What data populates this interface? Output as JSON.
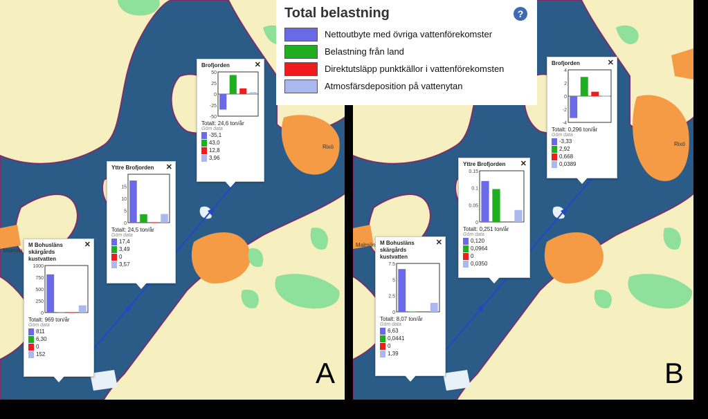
{
  "legend": {
    "title": "Total belastning",
    "help_icon": "question-icon",
    "items": [
      {
        "label": "Nettoutbyte med övriga vattenförekomster",
        "color": "#6a6ae8"
      },
      {
        "label": "Belastning från land",
        "color": "#1fae1f"
      },
      {
        "label": "Direktutsläpp punktkällor i vattenförekomsten",
        "color": "#ee1c1c"
      },
      {
        "label": "Atmosfärsdeposition på vattenytan",
        "color": "#aab8ee"
      }
    ]
  },
  "place_names": {
    "malmon": "Malmön",
    "rixo": "Rixö"
  },
  "hide_label": "Göm data",
  "panels": [
    {
      "letter": "A",
      "popups": [
        {
          "title": "Brofjorden",
          "total": "Totalt: 24,6 ton/år",
          "values": [
            "-35,1",
            "43,0",
            "12,8",
            "3,96"
          ],
          "chart_data": {
            "type": "bar",
            "categories": [
              "Nettoutbyte",
              "Land",
              "Punktkällor",
              "Atmosfär"
            ],
            "values": [
              -35.1,
              43.0,
              12.8,
              3.96
            ],
            "ylim": [
              -50,
              50
            ],
            "yticks": [
              "50",
              "25",
              "0",
              "-25",
              "-50"
            ],
            "ytick_values": [
              50,
              25,
              0,
              -25,
              -50
            ]
          }
        },
        {
          "title": "Yttre Brofjorden",
          "total": "Totalt: 24,5 ton/år",
          "values": [
            "17,4",
            "3,49",
            "0",
            "3,57"
          ],
          "chart_data": {
            "type": "bar",
            "categories": [
              "Nettoutbyte",
              "Land",
              "Punktkällor",
              "Atmosfär"
            ],
            "values": [
              17.4,
              3.49,
              0,
              3.57
            ],
            "ylim": [
              0,
              20
            ],
            "yticks": [
              "15",
              "10",
              "5",
              "0"
            ],
            "ytick_values": [
              15,
              10,
              5,
              0
            ]
          }
        },
        {
          "title": "M Bohusläns skärgårds kustvatten",
          "total": "Totalt: 969 ton/år",
          "values": [
            "811",
            "6,30",
            "0",
            "152"
          ],
          "chart_data": {
            "type": "bar",
            "categories": [
              "Nettoutbyte",
              "Land",
              "Punktkällor",
              "Atmosfär"
            ],
            "values": [
              811,
              6.3,
              0,
              152
            ],
            "ylim": [
              0,
              1000
            ],
            "yticks": [
              "1000",
              "750",
              "500",
              "250",
              "0"
            ],
            "ytick_values": [
              1000,
              750,
              500,
              250,
              0
            ]
          }
        }
      ]
    },
    {
      "letter": "B",
      "popups": [
        {
          "title": "Brofjorden",
          "total": "Totalt: 0,296 ton/år",
          "values": [
            "-3,33",
            "2,92",
            "0,668",
            "0,0389"
          ],
          "chart_data": {
            "type": "bar",
            "categories": [
              "Nettoutbyte",
              "Land",
              "Punktkällor",
              "Atmosfär"
            ],
            "values": [
              -3.33,
              2.92,
              0.668,
              0.0389
            ],
            "ylim": [
              -4,
              4
            ],
            "yticks": [
              "4",
              "2",
              "0",
              "-2",
              "-4"
            ],
            "ytick_values": [
              4,
              2,
              0,
              -2,
              -4
            ]
          }
        },
        {
          "title": "Yttre Brofjorden",
          "total": "Totalt: 0,251 ton/år",
          "values": [
            "0,120",
            "0,0964",
            "0",
            "0,0350"
          ],
          "chart_data": {
            "type": "bar",
            "categories": [
              "Nettoutbyte",
              "Land",
              "Punktkällor",
              "Atmosfär"
            ],
            "values": [
              0.12,
              0.0964,
              0,
              0.035
            ],
            "ylim": [
              0,
              0.15
            ],
            "yticks": [
              "0.15",
              "0.1",
              "0.05",
              "0"
            ],
            "ytick_values": [
              0.15,
              0.1,
              0.05,
              0
            ]
          }
        },
        {
          "title": "M Bohusläns skärgårds kustvatten",
          "total": "Totalt: 8,07 ton/år",
          "values": [
            "6,63",
            "0,0441",
            "0",
            "1,39"
          ],
          "chart_data": {
            "type": "bar",
            "categories": [
              "Nettoutbyte",
              "Land",
              "Punktkällor",
              "Atmosfär"
            ],
            "values": [
              6.63,
              0.0441,
              0,
              1.39
            ],
            "ylim": [
              0,
              7.5
            ],
            "yticks": [
              "7.5",
              "5",
              "2.5",
              "0"
            ],
            "ytick_values": [
              7.5,
              5,
              2.5,
              0
            ]
          }
        }
      ]
    }
  ]
}
